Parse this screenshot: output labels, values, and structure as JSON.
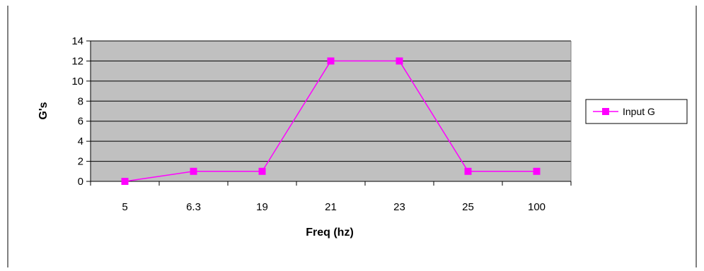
{
  "chart_data": {
    "type": "line",
    "title": "",
    "xlabel": "Freq (hz)",
    "ylabel": "G's",
    "categories": [
      "5",
      "6.3",
      "19",
      "21",
      "23",
      "25",
      "100"
    ],
    "series": [
      {
        "name": "Input G",
        "values": [
          0,
          1,
          1,
          12,
          12,
          1,
          1
        ],
        "color": "#ff00ff",
        "marker": "square"
      }
    ],
    "yticks": [
      "0",
      "2",
      "4",
      "6",
      "8",
      "10",
      "12",
      "14"
    ],
    "ylim": [
      0,
      14
    ],
    "ystep": 2,
    "grid": true,
    "plot_background": "#c0c0c0",
    "legend": "right"
  }
}
